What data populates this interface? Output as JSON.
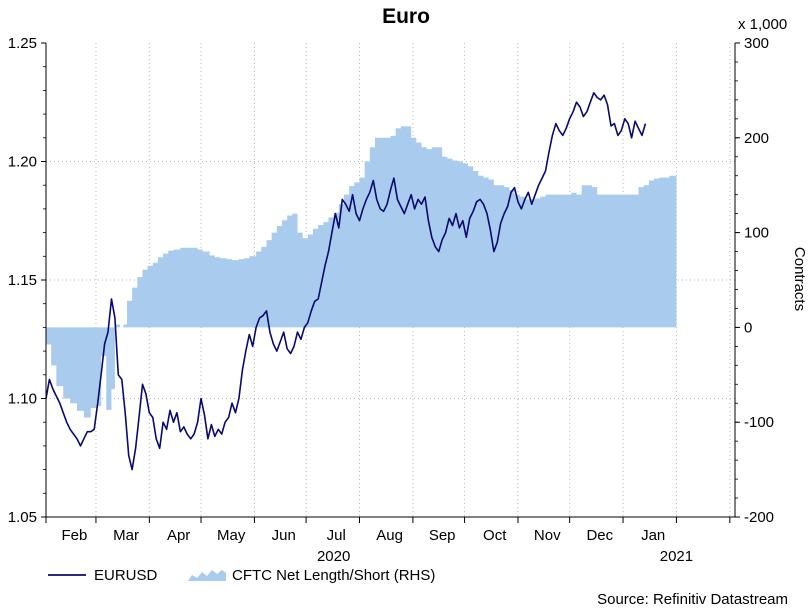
{
  "chart_data": {
    "type": "line+area",
    "title": "Euro",
    "source": "Source: Refinitiv Datastream",
    "left_axis": {
      "ticks": [
        "1.05",
        "1.10",
        "1.15",
        "1.20",
        "1.25"
      ],
      "ylim": [
        1.05,
        1.25
      ]
    },
    "right_axis": {
      "unit_label": "x 1,000",
      "label": "Contracts",
      "ticks": [
        "-200",
        "-100",
        "0",
        "100",
        "200",
        "300"
      ],
      "ylim": [
        -200,
        300
      ]
    },
    "x_axis": {
      "month_labels": [
        "Feb",
        "Mar",
        "Apr",
        "May",
        "Jun",
        "Jul",
        "Aug",
        "Sep",
        "Oct",
        "Nov",
        "Dec",
        "Jan"
      ],
      "year_labels": [
        "2020",
        "2021"
      ],
      "range_days": [
        0,
        400
      ]
    },
    "series": [
      {
        "name": "EURUSD",
        "type": "line",
        "axis": "left",
        "color": "#0a0a6e",
        "points": [
          [
            0,
            1.1
          ],
          [
            2,
            1.108
          ],
          [
            4,
            1.104
          ],
          [
            6,
            1.101
          ],
          [
            8,
            1.098
          ],
          [
            10,
            1.094
          ],
          [
            12,
            1.09
          ],
          [
            14,
            1.087
          ],
          [
            16,
            1.085
          ],
          [
            18,
            1.083
          ],
          [
            20,
            1.08
          ],
          [
            22,
            1.083
          ],
          [
            24,
            1.086
          ],
          [
            26,
            1.086
          ],
          [
            28,
            1.087
          ],
          [
            30,
            1.098
          ],
          [
            32,
            1.11
          ],
          [
            34,
            1.123
          ],
          [
            36,
            1.128
          ],
          [
            38,
            1.142
          ],
          [
            40,
            1.134
          ],
          [
            42,
            1.11
          ],
          [
            44,
            1.108
          ],
          [
            46,
            1.094
          ],
          [
            48,
            1.076
          ],
          [
            50,
            1.07
          ],
          [
            52,
            1.079
          ],
          [
            54,
            1.092
          ],
          [
            56,
            1.106
          ],
          [
            58,
            1.102
          ],
          [
            60,
            1.094
          ],
          [
            62,
            1.092
          ],
          [
            64,
            1.083
          ],
          [
            66,
            1.079
          ],
          [
            68,
            1.09
          ],
          [
            70,
            1.087
          ],
          [
            72,
            1.095
          ],
          [
            74,
            1.09
          ],
          [
            76,
            1.094
          ],
          [
            78,
            1.086
          ],
          [
            80,
            1.088
          ],
          [
            82,
            1.085
          ],
          [
            84,
            1.083
          ],
          [
            86,
            1.085
          ],
          [
            88,
            1.09
          ],
          [
            90,
            1.1
          ],
          [
            92,
            1.093
          ],
          [
            94,
            1.083
          ],
          [
            96,
            1.089
          ],
          [
            98,
            1.084
          ],
          [
            100,
            1.087
          ],
          [
            102,
            1.085
          ],
          [
            104,
            1.09
          ],
          [
            106,
            1.092
          ],
          [
            108,
            1.098
          ],
          [
            110,
            1.094
          ],
          [
            112,
            1.1
          ],
          [
            114,
            1.112
          ],
          [
            116,
            1.12
          ],
          [
            118,
            1.127
          ],
          [
            120,
            1.122
          ],
          [
            122,
            1.13
          ],
          [
            124,
            1.134
          ],
          [
            126,
            1.135
          ],
          [
            128,
            1.137
          ],
          [
            130,
            1.128
          ],
          [
            132,
            1.123
          ],
          [
            134,
            1.12
          ],
          [
            136,
            1.124
          ],
          [
            138,
            1.128
          ],
          [
            140,
            1.121
          ],
          [
            142,
            1.119
          ],
          [
            144,
            1.122
          ],
          [
            146,
            1.128
          ],
          [
            148,
            1.125
          ],
          [
            150,
            1.13
          ],
          [
            152,
            1.132
          ],
          [
            154,
            1.137
          ],
          [
            156,
            1.141
          ],
          [
            158,
            1.142
          ],
          [
            160,
            1.149
          ],
          [
            162,
            1.156
          ],
          [
            164,
            1.162
          ],
          [
            166,
            1.17
          ],
          [
            168,
            1.178
          ],
          [
            170,
            1.172
          ],
          [
            172,
            1.184
          ],
          [
            174,
            1.182
          ],
          [
            176,
            1.179
          ],
          [
            178,
            1.186
          ],
          [
            180,
            1.178
          ],
          [
            182,
            1.175
          ],
          [
            184,
            1.18
          ],
          [
            186,
            1.184
          ],
          [
            188,
            1.187
          ],
          [
            190,
            1.192
          ],
          [
            192,
            1.184
          ],
          [
            194,
            1.18
          ],
          [
            196,
            1.179
          ],
          [
            198,
            1.182
          ],
          [
            200,
            1.188
          ],
          [
            202,
            1.193
          ],
          [
            204,
            1.184
          ],
          [
            206,
            1.181
          ],
          [
            208,
            1.178
          ],
          [
            210,
            1.182
          ],
          [
            212,
            1.186
          ],
          [
            214,
            1.18
          ],
          [
            216,
            1.184
          ],
          [
            218,
            1.182
          ],
          [
            220,
            1.185
          ],
          [
            222,
            1.175
          ],
          [
            224,
            1.168
          ],
          [
            226,
            1.164
          ],
          [
            228,
            1.162
          ],
          [
            230,
            1.167
          ],
          [
            232,
            1.17
          ],
          [
            234,
            1.176
          ],
          [
            236,
            1.173
          ],
          [
            238,
            1.178
          ],
          [
            240,
            1.172
          ],
          [
            242,
            1.175
          ],
          [
            244,
            1.168
          ],
          [
            246,
            1.176
          ],
          [
            248,
            1.179
          ],
          [
            250,
            1.183
          ],
          [
            252,
            1.184
          ],
          [
            254,
            1.182
          ],
          [
            256,
            1.178
          ],
          [
            258,
            1.171
          ],
          [
            260,
            1.162
          ],
          [
            262,
            1.166
          ],
          [
            264,
            1.174
          ],
          [
            266,
            1.178
          ],
          [
            268,
            1.181
          ],
          [
            270,
            1.187
          ],
          [
            272,
            1.189
          ],
          [
            274,
            1.183
          ],
          [
            276,
            1.18
          ],
          [
            278,
            1.184
          ],
          [
            280,
            1.187
          ],
          [
            282,
            1.182
          ],
          [
            284,
            1.186
          ],
          [
            286,
            1.19
          ],
          [
            288,
            1.193
          ],
          [
            290,
            1.196
          ],
          [
            292,
            1.204
          ],
          [
            294,
            1.211
          ],
          [
            296,
            1.216
          ],
          [
            298,
            1.213
          ],
          [
            300,
            1.211
          ],
          [
            302,
            1.214
          ],
          [
            304,
            1.218
          ],
          [
            306,
            1.221
          ],
          [
            308,
            1.225
          ],
          [
            310,
            1.223
          ],
          [
            312,
            1.219
          ],
          [
            314,
            1.221
          ],
          [
            316,
            1.225
          ],
          [
            318,
            1.229
          ],
          [
            320,
            1.227
          ],
          [
            322,
            1.226
          ],
          [
            324,
            1.228
          ],
          [
            326,
            1.224
          ],
          [
            328,
            1.215
          ],
          [
            330,
            1.216
          ],
          [
            332,
            1.211
          ],
          [
            334,
            1.213
          ],
          [
            336,
            1.218
          ],
          [
            338,
            1.216
          ],
          [
            340,
            1.21
          ],
          [
            342,
            1.217
          ],
          [
            344,
            1.214
          ],
          [
            346,
            1.211
          ],
          [
            348,
            1.216
          ]
        ]
      },
      {
        "name": "CFTC Net Length/Short (RHS)",
        "type": "area",
        "axis": "right",
        "color": "#a9cbee",
        "points": [
          [
            0,
            -18
          ],
          [
            3,
            -40
          ],
          [
            6,
            -62
          ],
          [
            10,
            -75
          ],
          [
            14,
            -80
          ],
          [
            18,
            -88
          ],
          [
            22,
            -95
          ],
          [
            26,
            -85
          ],
          [
            30,
            -83
          ],
          [
            32,
            -30
          ],
          [
            35,
            -87
          ],
          [
            38,
            -65
          ],
          [
            40,
            3
          ],
          [
            43,
            0
          ],
          [
            45,
            3
          ],
          [
            47,
            28
          ],
          [
            50,
            42
          ],
          [
            53,
            53
          ],
          [
            56,
            61
          ],
          [
            59,
            65
          ],
          [
            62,
            68
          ],
          [
            65,
            74
          ],
          [
            68,
            78
          ],
          [
            71,
            81
          ],
          [
            74,
            82
          ],
          [
            78,
            84
          ],
          [
            82,
            84
          ],
          [
            86,
            84
          ],
          [
            88,
            82
          ],
          [
            91,
            80
          ],
          [
            95,
            76
          ],
          [
            98,
            74
          ],
          [
            101,
            73
          ],
          [
            105,
            72
          ],
          [
            108,
            71
          ],
          [
            112,
            72
          ],
          [
            115,
            73
          ],
          [
            118,
            75
          ],
          [
            122,
            80
          ],
          [
            125,
            85
          ],
          [
            128,
            92
          ],
          [
            131,
            100
          ],
          [
            134,
            107
          ],
          [
            137,
            113
          ],
          [
            140,
            118
          ],
          [
            143,
            120
          ],
          [
            146,
            100
          ],
          [
            149,
            94
          ],
          [
            152,
            98
          ],
          [
            155,
            104
          ],
          [
            158,
            108
          ],
          [
            161,
            111
          ],
          [
            164,
            116
          ],
          [
            167,
            121
          ],
          [
            170,
            130
          ],
          [
            173,
            140
          ],
          [
            176,
            149
          ],
          [
            179,
            153
          ],
          [
            182,
            158
          ],
          [
            185,
            175
          ],
          [
            188,
            190
          ],
          [
            191,
            200
          ],
          [
            194,
            200
          ],
          [
            197,
            200
          ],
          [
            200,
            202
          ],
          [
            203,
            210
          ],
          [
            206,
            212
          ],
          [
            209,
            212
          ],
          [
            212,
            200
          ],
          [
            215,
            195
          ],
          [
            218,
            190
          ],
          [
            221,
            188
          ],
          [
            224,
            190
          ],
          [
            227,
            190
          ],
          [
            230,
            180
          ],
          [
            233,
            178
          ],
          [
            236,
            176
          ],
          [
            239,
            175
          ],
          [
            242,
            173
          ],
          [
            245,
            170
          ],
          [
            248,
            165
          ],
          [
            251,
            160
          ],
          [
            254,
            158
          ],
          [
            257,
            156
          ],
          [
            260,
            150
          ],
          [
            263,
            150
          ],
          [
            266,
            148
          ],
          [
            269,
            145
          ],
          [
            272,
            140
          ],
          [
            275,
            138
          ],
          [
            278,
            135
          ],
          [
            281,
            135
          ],
          [
            284,
            136
          ],
          [
            287,
            138
          ],
          [
            290,
            140
          ],
          [
            293,
            140
          ],
          [
            296,
            140
          ],
          [
            299,
            140
          ],
          [
            302,
            140
          ],
          [
            305,
            142
          ],
          [
            308,
            140
          ],
          [
            311,
            150
          ],
          [
            314,
            150
          ],
          [
            317,
            148
          ],
          [
            320,
            140
          ],
          [
            323,
            140
          ],
          [
            326,
            140
          ],
          [
            329,
            140
          ],
          [
            332,
            140
          ],
          [
            335,
            140
          ],
          [
            338,
            140
          ],
          [
            341,
            140
          ],
          [
            344,
            148
          ],
          [
            347,
            150
          ],
          [
            350,
            155
          ],
          [
            353,
            157
          ],
          [
            356,
            158
          ],
          [
            359,
            158
          ],
          [
            362,
            160
          ],
          [
            365,
            160
          ]
        ]
      }
    ],
    "legend": {
      "position": "bottom-left",
      "entries": [
        "EURUSD",
        "CFTC Net Length/Short (RHS)"
      ]
    },
    "colors": {
      "line": "#0a0a6e",
      "area": "#a9cbee",
      "grid": "#b8b8b8",
      "axis": "#000000"
    }
  }
}
